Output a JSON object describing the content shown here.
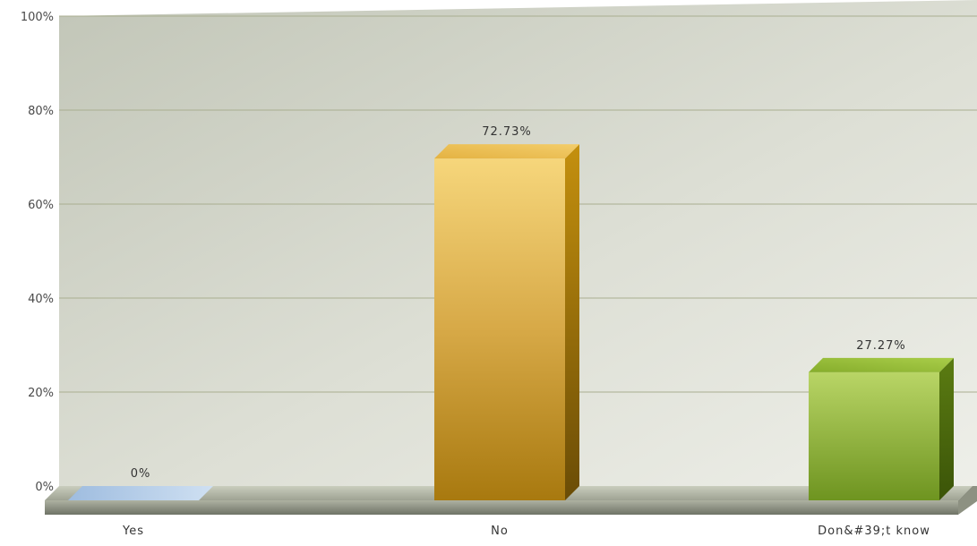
{
  "chart_data": {
    "type": "bar",
    "style": "3d",
    "categories": [
      "Yes",
      "No",
      "Don&#39;t know"
    ],
    "values": [
      0,
      72.73,
      27.27
    ],
    "data_labels": [
      "0%",
      "72.73%",
      "27.27%"
    ],
    "ylim": [
      0,
      100
    ],
    "yticks": [
      {
        "value": 0,
        "label": "0%"
      },
      {
        "value": 20,
        "label": "20%"
      },
      {
        "value": 40,
        "label": "40%"
      },
      {
        "value": 60,
        "label": "60%"
      },
      {
        "value": 80,
        "label": "80%"
      },
      {
        "value": 100,
        "label": "100%"
      }
    ],
    "grid": true,
    "legend": "none",
    "colors": {
      "Yes": "#a9c6e6",
      "No": "#d9a93c",
      "Don&#39;t know": "#8fb33c"
    }
  }
}
